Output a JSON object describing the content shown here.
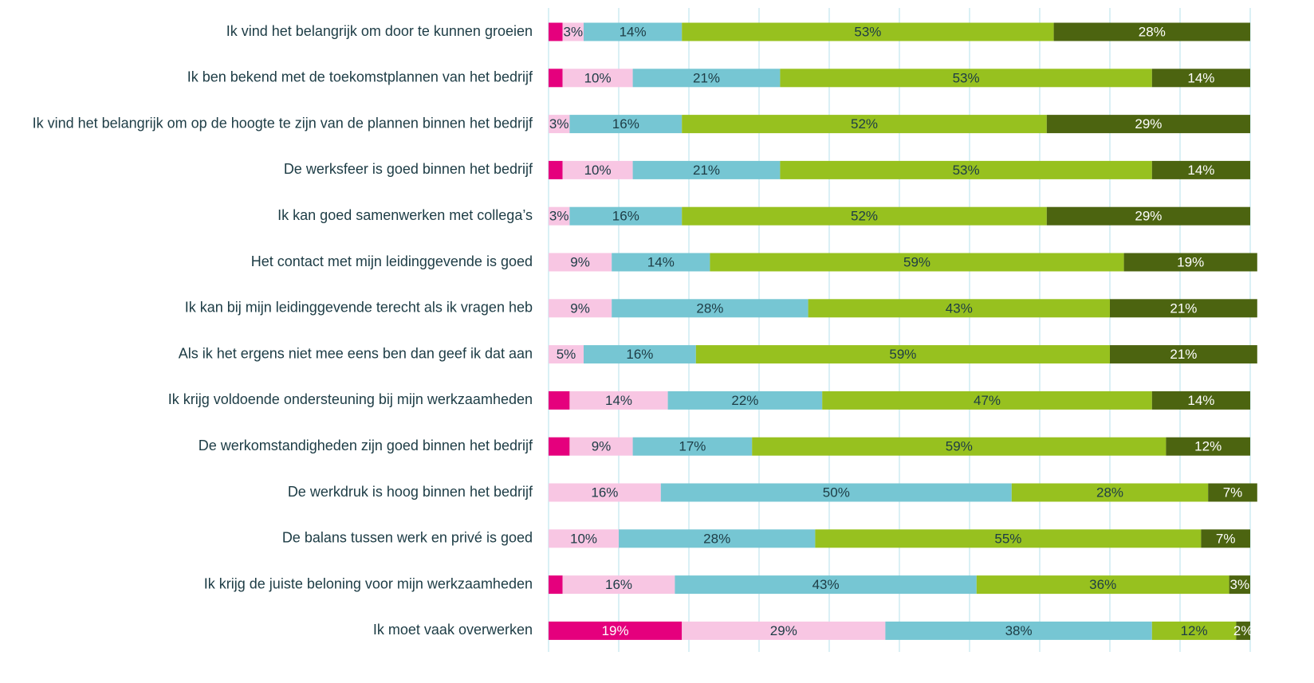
{
  "chart_data": {
    "type": "stacked_barh",
    "categories": [
      "Ik vind het belangrijk om door te kunnen groeien",
      "Ik ben bekend met de toekomstplannen van het bedrijf",
      "Ik vind het belangrijk om op de hoogte te zijn van de plannen binnen het bedrijf",
      "De werksfeer is goed binnen het bedrijf",
      "Ik kan goed samenwerken met collega’s",
      "Het contact met mijn leidinggevende is goed",
      "Ik kan bij mijn leidinggevende terecht als ik vragen heb",
      "Als ik het ergens niet mee eens ben dan geef ik dat aan",
      "Ik krijg voldoende ondersteuning bij mijn werkzaamheden",
      "De werkomstandigheden zijn goed binnen het bedrijf",
      "De werkdruk is hoog binnen het bedrijf",
      "De balans tussen werk en privé is goed",
      "Ik krijg de juiste beloning voor mijn werkzaamheden",
      "Ik moet vaak overwerken"
    ],
    "series": [
      {
        "color": "#e5007d",
        "label_color": "#ffffff",
        "values": [
          2,
          2,
          0,
          2,
          0,
          0,
          0,
          0,
          3,
          3,
          0,
          0,
          2,
          19
        ],
        "value_labels": [
          null,
          null,
          null,
          null,
          null,
          null,
          null,
          null,
          null,
          null,
          null,
          null,
          null,
          "19%"
        ]
      },
      {
        "color": "#f8c6e3",
        "label_color": "#1d3c45",
        "values": [
          3,
          10,
          3,
          10,
          3,
          9,
          9,
          5,
          14,
          9,
          16,
          10,
          16,
          29
        ],
        "value_labels": [
          "3%",
          "10%",
          "3%",
          "10%",
          "3%",
          "9%",
          "9%",
          "5%",
          "14%",
          "9%",
          "16%",
          "10%",
          "16%",
          "29%"
        ]
      },
      {
        "color": "#76c6d3",
        "label_color": "#1d3c45",
        "values": [
          14,
          21,
          16,
          21,
          16,
          14,
          28,
          16,
          22,
          17,
          50,
          28,
          43,
          38
        ],
        "value_labels": [
          "14%",
          "21%",
          "16%",
          "21%",
          "16%",
          "14%",
          "28%",
          "16%",
          "22%",
          "17%",
          "50%",
          "28%",
          "43%",
          "38%"
        ]
      },
      {
        "color": "#97c11f",
        "label_color": "#1d3c45",
        "values": [
          53,
          53,
          52,
          53,
          52,
          59,
          43,
          59,
          47,
          59,
          28,
          55,
          36,
          12
        ],
        "value_labels": [
          "53%",
          "53%",
          "52%",
          "53%",
          "52%",
          "59%",
          "43%",
          "59%",
          "47%",
          "59%",
          "28%",
          "55%",
          "36%",
          "12%"
        ]
      },
      {
        "color": "#4c6410",
        "label_color": "#ffffff",
        "values": [
          28,
          14,
          29,
          14,
          29,
          19,
          21,
          21,
          14,
          12,
          7,
          7,
          3,
          2
        ],
        "value_labels": [
          "28%",
          "14%",
          "29%",
          "14%",
          "29%",
          "19%",
          "21%",
          "21%",
          "14%",
          "12%",
          "7%",
          "7%",
          "3%",
          "2%"
        ]
      }
    ],
    "xlim": [
      0,
      100
    ],
    "xticks": [
      0,
      10,
      20,
      30,
      40,
      50,
      60,
      70,
      80,
      90,
      100
    ],
    "grid": true,
    "grid_color": "#cdebf2"
  }
}
